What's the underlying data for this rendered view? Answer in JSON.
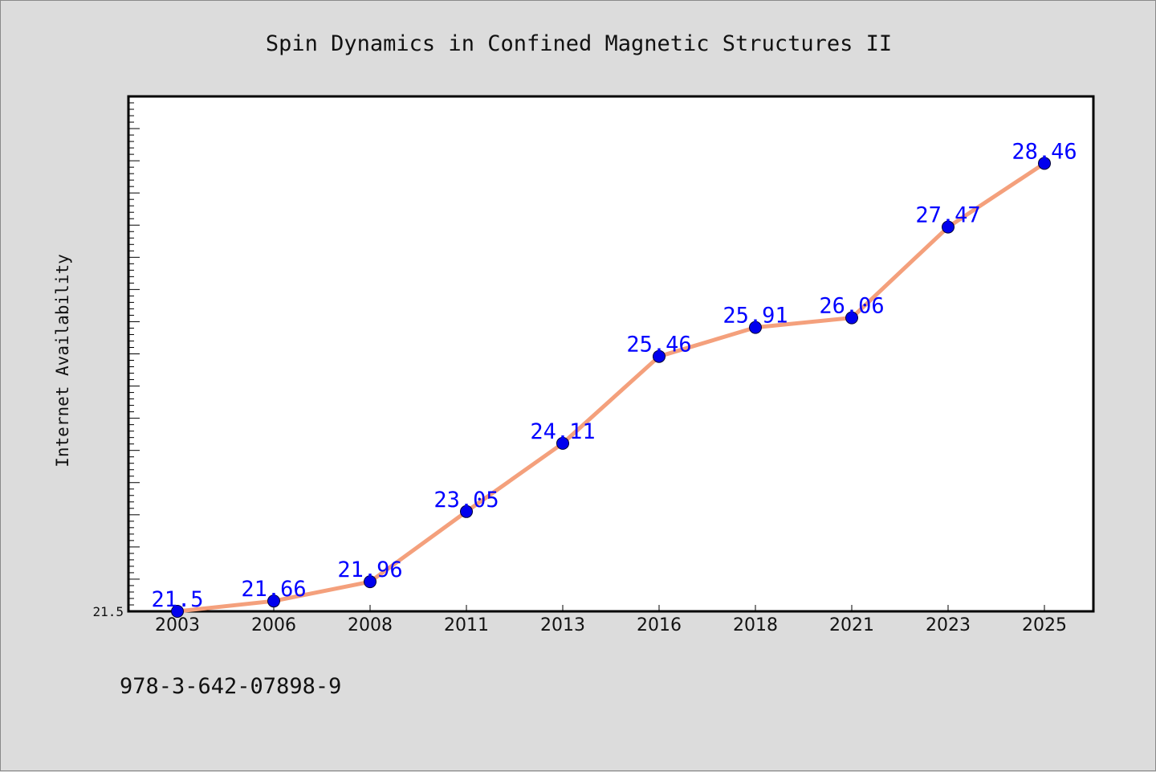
{
  "footer_text": "978-3-642-07898-9",
  "chart_data": {
    "type": "line",
    "title": "Spin Dynamics in Confined Magnetic Structures II",
    "xlabel": "",
    "ylabel": "Internet Availability",
    "categories": [
      "2003",
      "2006",
      "2008",
      "2011",
      "2013",
      "2016",
      "2018",
      "2021",
      "2023",
      "2025"
    ],
    "series": [
      {
        "values": [
          21.5,
          21.66,
          21.96,
          23.05,
          24.11,
          25.46,
          25.91,
          26.06,
          27.47,
          28.46
        ],
        "data_labels": [
          "21.5",
          "21.66",
          "21.96",
          "23.05",
          "24.11",
          "25.46",
          "25.91",
          "26.06",
          "27.47",
          "28.46"
        ],
        "line_color": "#f4a07c",
        "marker_color": "#0000ee"
      }
    ],
    "ylim": [
      21.5,
      29.5
    ],
    "yticks_labeled": [
      "21.5"
    ],
    "grid": false,
    "legend": "none"
  }
}
